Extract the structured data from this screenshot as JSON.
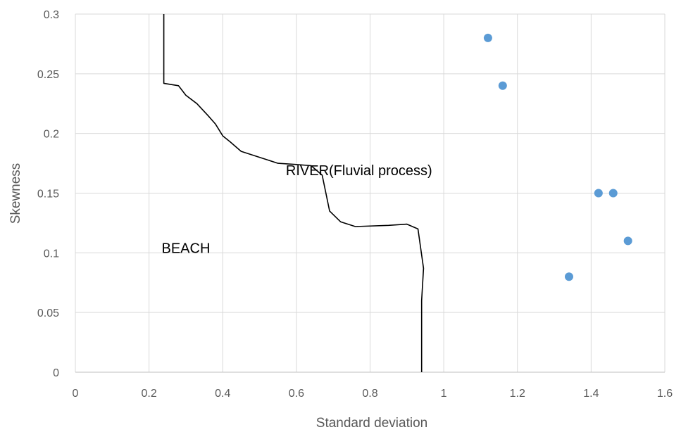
{
  "chart_data": {
    "type": "scatter",
    "title": "",
    "xlabel": "Standard deviation",
    "ylabel": "Skewness",
    "xlim": [
      0,
      1.6
    ],
    "ylim": [
      0,
      0.3
    ],
    "x_ticks": [
      0,
      0.2,
      0.4,
      0.6,
      0.8,
      1,
      1.2,
      1.4,
      1.6
    ],
    "x_tick_labels": [
      "0",
      "0.2",
      "0.4",
      "0.6",
      "0.8",
      "1",
      "1.2",
      "1.4",
      "1.6"
    ],
    "y_ticks": [
      0,
      0.05,
      0.1,
      0.15,
      0.2,
      0.25,
      0.3
    ],
    "y_tick_labels": [
      "0",
      "0.05",
      "0.1",
      "0.15",
      "0.2",
      "0.25",
      "0.3"
    ],
    "grid": true,
    "legend": "none",
    "colors": {
      "points": "#5b9bd5",
      "boundary": "#000000",
      "grid": "#d9d9d9",
      "text": "#595959"
    },
    "series": [
      {
        "x": [
          1.12,
          1.16,
          1.42,
          1.46,
          1.5,
          1.34
        ],
        "y": [
          0.28,
          0.24,
          0.15,
          0.15,
          0.11,
          0.08
        ]
      }
    ],
    "boundary_line": {
      "x": [
        0.24,
        0.24,
        0.28,
        0.3,
        0.33,
        0.36,
        0.38,
        0.4,
        0.42,
        0.45,
        0.5,
        0.55,
        0.6,
        0.64,
        0.67,
        0.69,
        0.72,
        0.76,
        0.85,
        0.9,
        0.93,
        0.945,
        0.94,
        0.94
      ],
      "y": [
        0.3,
        0.242,
        0.24,
        0.232,
        0.225,
        0.215,
        0.208,
        0.198,
        0.193,
        0.185,
        0.18,
        0.175,
        0.174,
        0.173,
        0.165,
        0.135,
        0.126,
        0.122,
        0.123,
        0.124,
        0.12,
        0.087,
        0.06,
        0
      ]
    },
    "annotations": [
      {
        "text": "RIVER(Fluvial process)",
        "x": 0.77,
        "y": 0.165
      },
      {
        "text": "BEACH",
        "x": 0.3,
        "y": 0.1
      }
    ]
  }
}
